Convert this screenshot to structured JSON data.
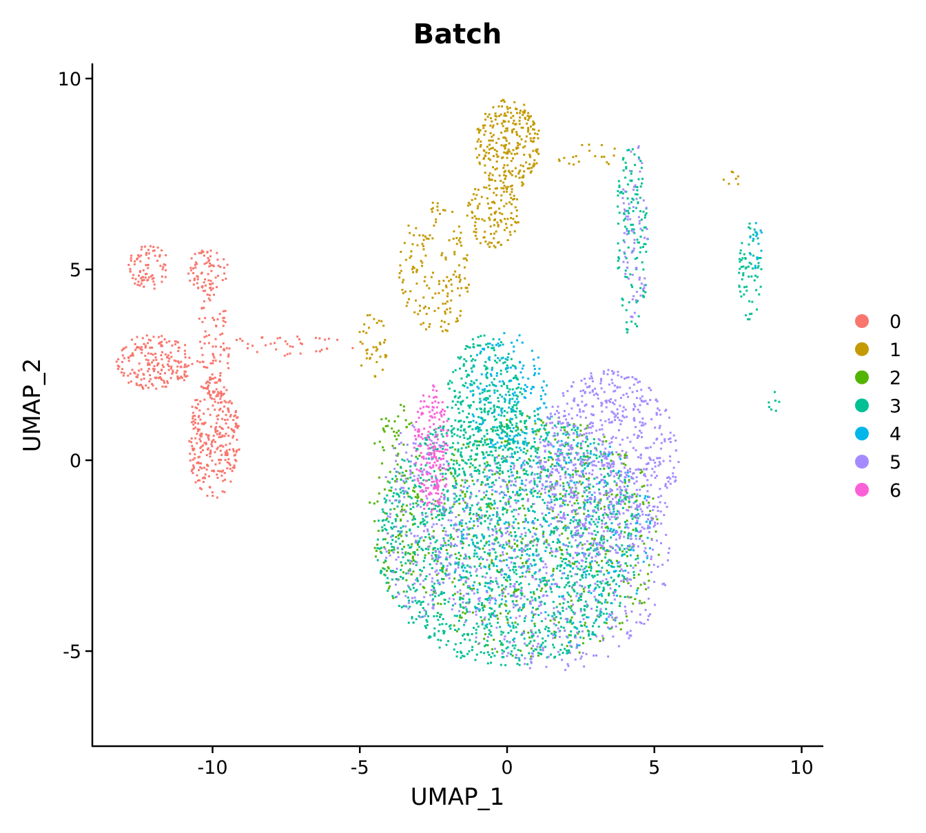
{
  "chart_data": {
    "type": "scatter",
    "title": "Batch",
    "xlabel": "UMAP_1",
    "ylabel": "UMAP_2",
    "xlim": [
      -14.2,
      10.6
    ],
    "ylim": [
      -7.5,
      10.4
    ],
    "xticks": [
      -10,
      -5,
      0,
      5,
      10
    ],
    "xtick_labels": [
      "-10",
      "-5",
      "0",
      "5",
      "10"
    ],
    "yticks": [
      -5,
      0,
      5,
      10
    ],
    "ytick_labels": [
      "-5",
      "0",
      "5",
      "10"
    ],
    "grid": false,
    "legend": {
      "placement": "right"
    },
    "series": [
      {
        "name": "0",
        "color": "#F8766D",
        "regions": [
          {
            "cx": -12.2,
            "cy": 5.1,
            "rx": 0.7,
            "ry": 0.6,
            "density": 0.9
          },
          {
            "cx": -10.2,
            "cy": 5.0,
            "rx": 0.7,
            "ry": 0.55,
            "density": 0.9
          },
          {
            "cx": -12.0,
            "cy": 2.6,
            "rx": 1.3,
            "ry": 0.75,
            "density": 0.95
          },
          {
            "cx": -10.0,
            "cy": 0.6,
            "rx": 0.9,
            "ry": 1.6,
            "density": 0.95
          },
          {
            "cx": -10.0,
            "cy": 3.0,
            "rx": 0.6,
            "ry": 1.5,
            "density": 0.5
          },
          {
            "cx": -7.5,
            "cy": 3.0,
            "rx": 2.4,
            "ry": 0.3,
            "density": 0.25
          }
        ]
      },
      {
        "name": "1",
        "color": "#C49A00",
        "regions": [
          {
            "cx": 0.0,
            "cy": 8.3,
            "rx": 1.1,
            "ry": 1.2,
            "density": 0.95
          },
          {
            "cx": -0.5,
            "cy": 6.5,
            "rx": 0.9,
            "ry": 0.9,
            "density": 0.7
          },
          {
            "cx": -2.5,
            "cy": 5.0,
            "rx": 1.2,
            "ry": 1.8,
            "density": 0.35
          },
          {
            "cx": -4.6,
            "cy": 3.0,
            "rx": 0.5,
            "ry": 0.9,
            "density": 0.4
          },
          {
            "cx": 2.8,
            "cy": 8.0,
            "rx": 1.2,
            "ry": 0.3,
            "density": 0.25
          },
          {
            "cx": 7.6,
            "cy": 7.4,
            "rx": 0.35,
            "ry": 0.2,
            "density": 0.5
          }
        ]
      },
      {
        "name": "2",
        "color": "#53B400",
        "regions": [
          {
            "cx": 1.0,
            "cy": -2.0,
            "rx": 4.3,
            "ry": 3.2,
            "density": 0.2
          },
          {
            "cx": -3.8,
            "cy": -1.0,
            "rx": 0.9,
            "ry": 2.6,
            "density": 0.3
          }
        ]
      },
      {
        "name": "3",
        "color": "#00C094",
        "regions": [
          {
            "cx": 0.0,
            "cy": -2.0,
            "rx": 4.5,
            "ry": 3.4,
            "density": 0.55
          },
          {
            "cx": -0.8,
            "cy": 1.5,
            "rx": 1.3,
            "ry": 1.8,
            "density": 0.6
          },
          {
            "cx": 4.2,
            "cy": 5.8,
            "rx": 0.55,
            "ry": 2.6,
            "density": 0.45
          },
          {
            "cx": 8.2,
            "cy": 5.0,
            "rx": 0.4,
            "ry": 1.3,
            "density": 0.6
          },
          {
            "cx": 9.1,
            "cy": 1.5,
            "rx": 0.25,
            "ry": 0.35,
            "density": 0.4
          }
        ]
      },
      {
        "name": "4",
        "color": "#00B6EB",
        "regions": [
          {
            "cx": 0.0,
            "cy": 1.8,
            "rx": 1.4,
            "ry": 1.6,
            "density": 0.35
          },
          {
            "cx": 1.5,
            "cy": -2.0,
            "rx": 3.5,
            "ry": 3.0,
            "density": 0.12
          },
          {
            "cx": 8.4,
            "cy": 5.7,
            "rx": 0.25,
            "ry": 0.7,
            "density": 0.4
          }
        ]
      },
      {
        "name": "5",
        "color": "#A58AFF",
        "regions": [
          {
            "cx": 3.4,
            "cy": 0.0,
            "rx": 2.4,
            "ry": 2.4,
            "density": 0.55
          },
          {
            "cx": 1.5,
            "cy": -2.5,
            "rx": 4.0,
            "ry": 3.0,
            "density": 0.25
          },
          {
            "cx": -3.0,
            "cy": -1.5,
            "rx": 1.3,
            "ry": 2.6,
            "density": 0.25
          },
          {
            "cx": 4.3,
            "cy": 6.0,
            "rx": 0.45,
            "ry": 2.4,
            "density": 0.3
          }
        ]
      },
      {
        "name": "6",
        "color": "#FB61D7",
        "regions": [
          {
            "cx": -2.6,
            "cy": 0.3,
            "rx": 0.6,
            "ry": 1.7,
            "density": 0.95
          }
        ]
      }
    ]
  }
}
